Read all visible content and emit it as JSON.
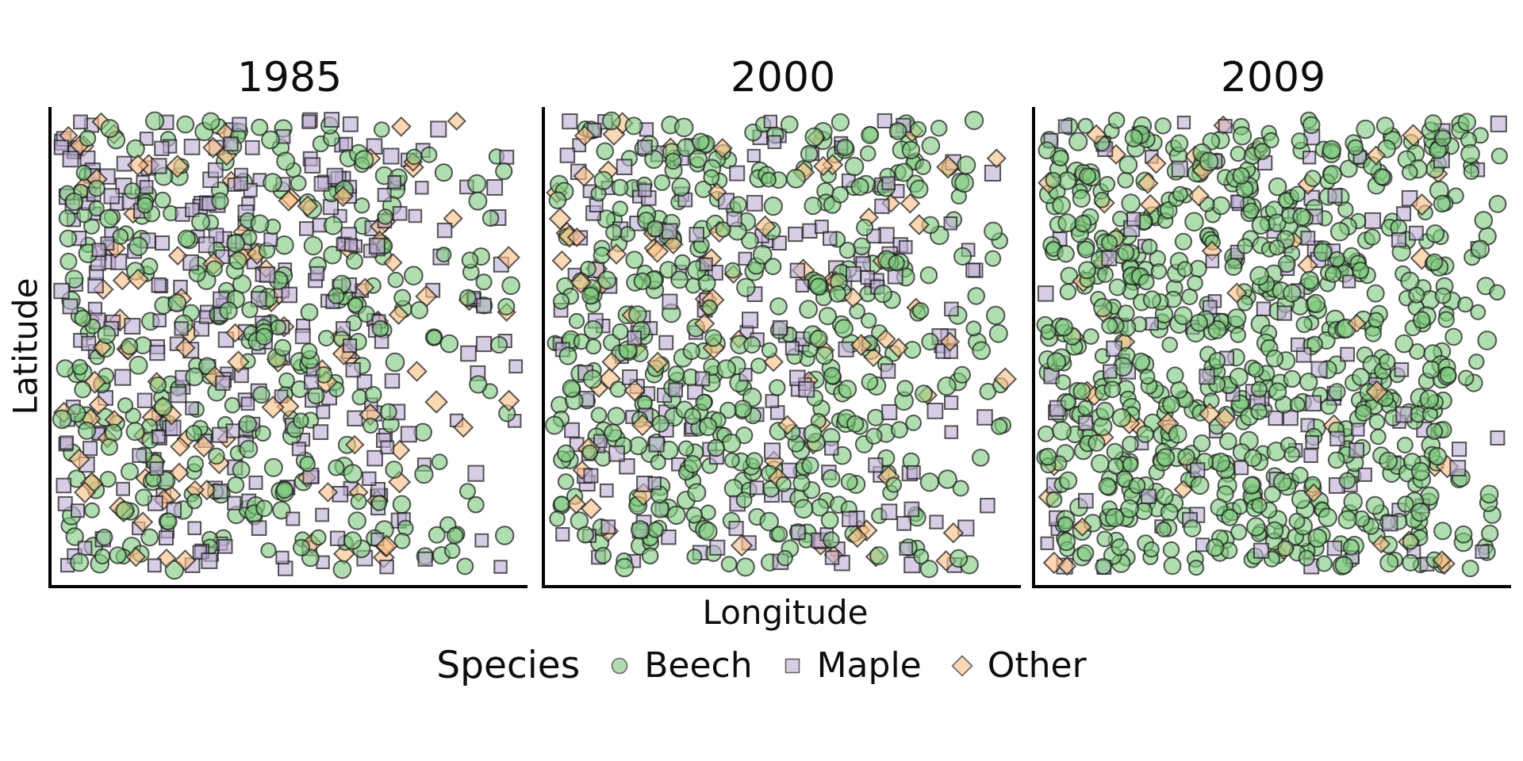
{
  "figure": {
    "xlabel": "Longitude",
    "ylabel": "Latitude",
    "legend": {
      "title": "Species",
      "entries": [
        {
          "label": "Beech",
          "shape": "circle",
          "fill": "#7fc97f",
          "edge": "#5f6b5f"
        },
        {
          "label": "Maple",
          "shape": "square",
          "fill": "#beaed4",
          "edge": "#6b6b78"
        },
        {
          "label": "Other",
          "shape": "diamond",
          "fill": "#fdc086",
          "edge": "#7a7060"
        }
      ]
    }
  },
  "chart_data": {
    "type": "scatter",
    "faceted_by": "year",
    "x": "Longitude",
    "y": "Latitude",
    "axis_ticks_visible": false,
    "axis_tick_labels": "none (unlabeled spatial coordinates)",
    "legend_position": "bottom",
    "facets": [
      {
        "title": "1985",
        "species_counts": {
          "Beech": 360,
          "Maple": 320,
          "Other": 120
        }
      },
      {
        "title": "2000",
        "species_counts": {
          "Beech": 470,
          "Maple": 210,
          "Other": 90
        }
      },
      {
        "title": "2009",
        "species_counts": {
          "Beech": 760,
          "Maple": 130,
          "Other": 55
        }
      }
    ],
    "series_styles": [
      {
        "name": "Beech",
        "shape": "circle",
        "fill": "#7fc97f"
      },
      {
        "name": "Maple",
        "shape": "square",
        "fill": "#beaed4"
      },
      {
        "name": "Other",
        "shape": "diamond",
        "fill": "#fdc086"
      }
    ],
    "render": {
      "seed": 1337,
      "fill_alpha": 0.62,
      "edge_color": "#1b1b1b",
      "edge_alpha": 0.72,
      "stroke_width": 2,
      "right_fade": [
        0.78,
        0.8,
        0.88
      ]
    }
  }
}
